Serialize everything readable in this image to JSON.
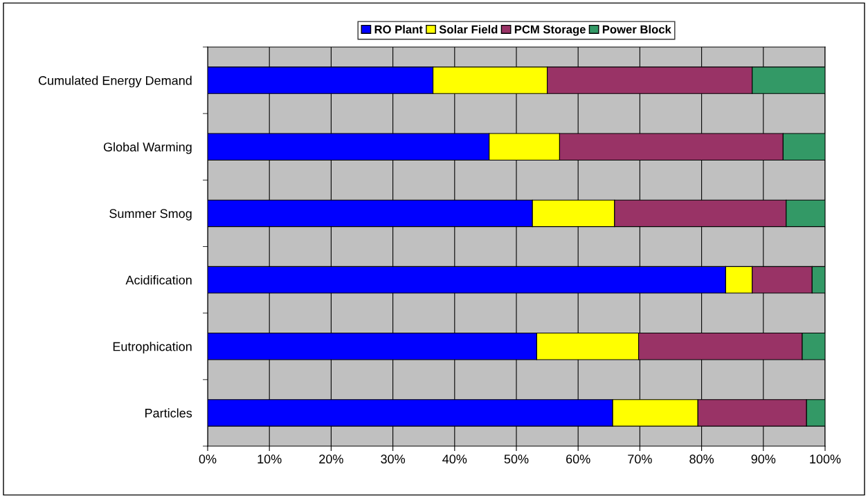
{
  "chart_data": {
    "type": "bar",
    "orientation": "horizontal",
    "stacked": true,
    "legend": "top",
    "grid": "x",
    "categories": [
      "Cumulated Energy Demand",
      "Global Warming",
      "Summer Smog",
      "Acidification",
      "Eutrophication",
      "Particles"
    ],
    "series": [
      {
        "name": "RO Plant",
        "color": "#0000ff",
        "values": [
          36.5,
          45.6,
          52.6,
          83.9,
          53.3,
          65.6
        ]
      },
      {
        "name": "Solar Field",
        "color": "#ffff00",
        "values": [
          18.5,
          11.4,
          13.3,
          4.3,
          16.5,
          13.8
        ]
      },
      {
        "name": "PCM Storage",
        "color": "#993366",
        "values": [
          33.2,
          36.2,
          27.8,
          9.7,
          26.5,
          17.6
        ]
      },
      {
        "name": "Power Block",
        "color": "#339966",
        "values": [
          11.8,
          6.8,
          6.3,
          2.1,
          3.7,
          3.0
        ]
      }
    ],
    "xlim": [
      0,
      100
    ],
    "xticks": [
      {
        "value": 0,
        "label": "0%"
      },
      {
        "value": 10,
        "label": "10%"
      },
      {
        "value": 20,
        "label": "20%"
      },
      {
        "value": 30,
        "label": "30%"
      },
      {
        "value": 40,
        "label": "40%"
      },
      {
        "value": 50,
        "label": "50%"
      },
      {
        "value": 60,
        "label": "60%"
      },
      {
        "value": 70,
        "label": "70%"
      },
      {
        "value": 80,
        "label": "80%"
      },
      {
        "value": 90,
        "label": "90%"
      },
      {
        "value": 100,
        "label": "100%"
      }
    ]
  }
}
